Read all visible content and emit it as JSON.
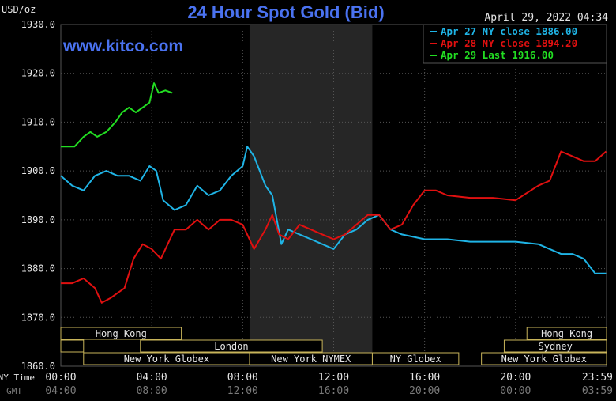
{
  "chart_data": {
    "type": "line",
    "title": "24 Hour Spot Gold (Bid)",
    "unit_label": "USD/oz",
    "timestamp": "April 29, 2022 04:34",
    "watermark": "www.kitco.com",
    "ylim": [
      1860,
      1930
    ],
    "y_ticks": [
      "1930.0",
      "1920.0",
      "1910.0",
      "1900.0",
      "1890.0",
      "1880.0",
      "1870.0",
      "1860.0"
    ],
    "x_ticks_ny": [
      "00:00",
      "04:00",
      "08:00",
      "12:00",
      "16:00",
      "20:00",
      "23:59"
    ],
    "x_ticks_gmt": [
      "04:00",
      "08:00",
      "12:00",
      "16:00",
      "20:00",
      "00:00",
      "03:59"
    ],
    "axis_row_labels": {
      "ny": "NY Time",
      "gmt": "GMT"
    },
    "shaded_range": [
      8.3,
      13.7
    ],
    "legend_position": "top-right",
    "legend": [
      {
        "label": "Apr 27 NY close 1886.00",
        "color": "#1fb4e6"
      },
      {
        "label": "Apr 28 NY close 1894.20",
        "color": "#e01010"
      },
      {
        "label": "Apr 29 Last 1916.00",
        "color": "#22dd22"
      }
    ],
    "series": [
      {
        "color": "#1fb4e6",
        "x": [
          0,
          0.5,
          1,
          1.5,
          2,
          2.5,
          3,
          3.5,
          3.9,
          4.2,
          4.5,
          5,
          5.5,
          6,
          6.5,
          7,
          7.5,
          8,
          8.2,
          8.5,
          9,
          9.3,
          9.7,
          10,
          10.5,
          11,
          11.5,
          12,
          12.5,
          13,
          13.5,
          14,
          14.5,
          15,
          16,
          17,
          18,
          19,
          20,
          21,
          22,
          22.5,
          23,
          23.5,
          23.98
        ],
        "y": [
          1899,
          1897,
          1896,
          1899,
          1900,
          1899,
          1899,
          1898,
          1901,
          1900,
          1894,
          1892,
          1893,
          1897,
          1895,
          1896,
          1899,
          1901,
          1905,
          1903,
          1897,
          1895,
          1885,
          1888,
          1887,
          1886,
          1885,
          1884,
          1887,
          1888,
          1890,
          1891,
          1888,
          1887,
          1886,
          1886,
          1885.5,
          1885.5,
          1885.5,
          1885,
          1883,
          1883,
          1882,
          1879,
          1879
        ]
      },
      {
        "color": "#e01010",
        "x": [
          0,
          0.5,
          1,
          1.5,
          1.8,
          2.2,
          2.8,
          3.2,
          3.6,
          4,
          4.4,
          5,
          5.5,
          6,
          6.5,
          7,
          7.5,
          8,
          8.5,
          9,
          9.3,
          9.6,
          10,
          10.5,
          11,
          11.5,
          12,
          12.5,
          13,
          13.5,
          14,
          14.5,
          15,
          15.5,
          16,
          16.5,
          17,
          18,
          19,
          20,
          21,
          21.5,
          22,
          22.5,
          23,
          23.5,
          23.98
        ],
        "y": [
          1877,
          1877,
          1878,
          1876,
          1873,
          1874,
          1876,
          1882,
          1885,
          1884,
          1882,
          1888,
          1888,
          1890,
          1888,
          1890,
          1890,
          1889,
          1884,
          1888,
          1891,
          1887,
          1886,
          1889,
          1888,
          1887,
          1886,
          1887,
          1889,
          1891,
          1891,
          1888,
          1889,
          1893,
          1896,
          1896,
          1895,
          1894.5,
          1894.5,
          1894,
          1897,
          1898,
          1904,
          1903,
          1902,
          1902,
          1904
        ]
      },
      {
        "color": "#22dd22",
        "x": [
          0,
          0.3,
          0.6,
          1,
          1.3,
          1.6,
          2,
          2.4,
          2.7,
          3,
          3.3,
          3.6,
          3.9,
          4.1,
          4.3,
          4.6,
          4.9
        ],
        "y": [
          1905,
          1905,
          1905,
          1907,
          1908,
          1907,
          1908,
          1910,
          1912,
          1913,
          1912,
          1913,
          1914,
          1918,
          1916,
          1916.5,
          1916
        ]
      }
    ],
    "session_bars": [
      [
        {
          "label": "Hong Kong",
          "start": 0,
          "end": 5.3
        },
        {
          "label": "Hong Kong",
          "start": 20.5,
          "end": 24
        }
      ],
      [
        {
          "label": "",
          "start": 0,
          "end": 1
        },
        {
          "label": "London",
          "start": 3.5,
          "end": 11.5
        },
        {
          "label": "Sydney",
          "start": 19.5,
          "end": 24
        }
      ],
      [
        {
          "label": "New York Globex",
          "start": 1,
          "end": 8.3
        },
        {
          "label": "New York NYMEX",
          "start": 8.3,
          "end": 13.7
        },
        {
          "label": "NY Globex",
          "start": 13.7,
          "end": 17.5
        },
        {
          "label": "New York Globex",
          "start": 18.5,
          "end": 24
        }
      ]
    ]
  }
}
